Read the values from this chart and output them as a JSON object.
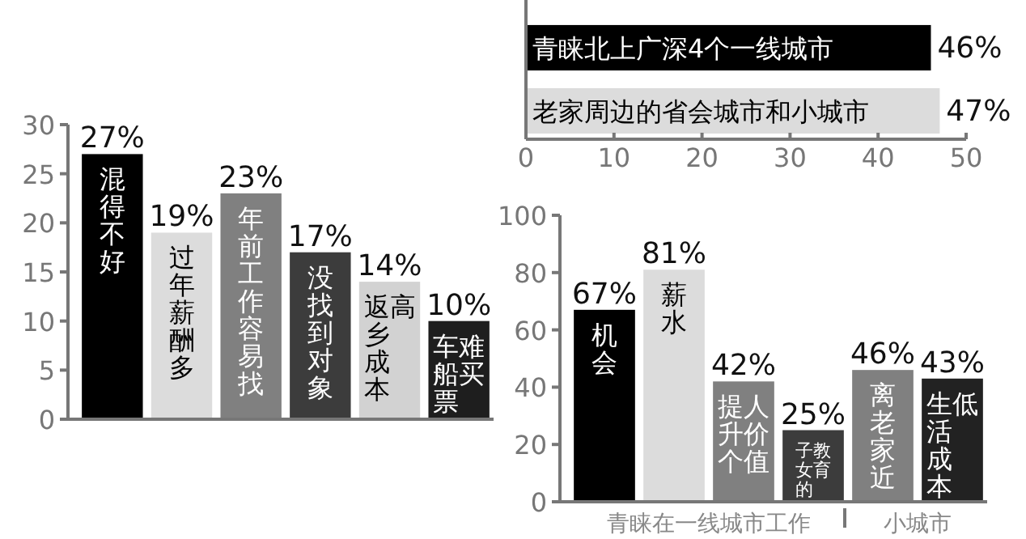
{
  "chart_data": [
    {
      "type": "bar",
      "categories": [
        "混得不好",
        "过年薪酬多",
        "年前工作容易找",
        "没找到对象",
        "返乡成本高",
        "车船票难买"
      ],
      "values": [
        27,
        19,
        23,
        17,
        14,
        10
      ],
      "colors": [
        "#000000",
        "#dcdcdc",
        "#808080",
        "#3c3c3c",
        "#d2d2d2",
        "#1e1e1e"
      ],
      "value_labels": [
        "27%",
        "19%",
        "23%",
        "17%",
        "14%",
        "10%"
      ],
      "ylim": [
        0,
        30
      ],
      "yticks": [
        0,
        5,
        10,
        15,
        20,
        25,
        30
      ],
      "grid": false
    },
    {
      "type": "bar",
      "orientation": "horizontal",
      "categories": [
        "青睐北上广深4个一线城市",
        "老家周边的省会城市和小城市"
      ],
      "values": [
        46,
        47
      ],
      "colors": [
        "#000000",
        "#dcdcdc"
      ],
      "value_labels": [
        "46%",
        "47%"
      ],
      "xlim": [
        0,
        50
      ],
      "xticks": [
        0,
        10,
        20,
        30,
        40,
        50
      ],
      "grid": false
    },
    {
      "type": "bar",
      "categories": [
        "机会",
        "薪水",
        "提升个人价值",
        "子女的教育",
        "离老家近",
        "生活成本低"
      ],
      "values": [
        67,
        81,
        42,
        25,
        46,
        43
      ],
      "colors": [
        "#000000",
        "#dcdcdc",
        "#808080",
        "#3c3c3c",
        "#808080",
        "#222222"
      ],
      "value_labels": [
        "67%",
        "81%",
        "42%",
        "25%",
        "46%",
        "43%"
      ],
      "ylim": [
        0,
        100
      ],
      "yticks": [
        0,
        20,
        40,
        60,
        80,
        100
      ],
      "annotations": [
        "青睐在一线城市工作",
        "小城市"
      ],
      "grid": false
    }
  ]
}
